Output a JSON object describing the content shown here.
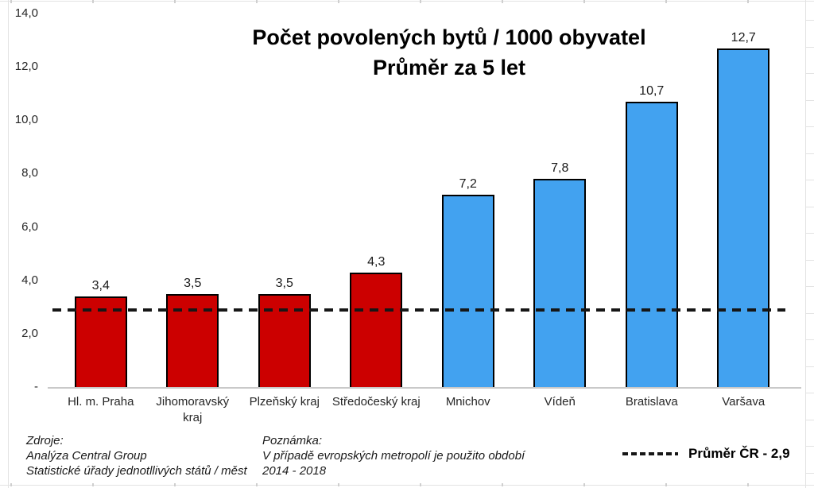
{
  "chart_data": {
    "type": "bar",
    "title_line1": "Počet povolených bytů / 1000 obyvatel",
    "title_line2": "Průměr za 5 let",
    "categories": [
      "Hl. m. Praha",
      "Jihomoravský kraj",
      "Plzeňský kraj",
      "Středočeský kraj",
      "Mnichov",
      "Vídeň",
      "Bratislava",
      "Varšava"
    ],
    "values": [
      3.4,
      3.5,
      3.5,
      4.3,
      7.2,
      7.8,
      10.7,
      12.7
    ],
    "value_labels": [
      "3,4",
      "3,5",
      "3,5",
      "4,3",
      "7,2",
      "7,8",
      "10,7",
      "12,7"
    ],
    "bar_colors": [
      "#cc0000",
      "#cc0000",
      "#cc0000",
      "#cc0000",
      "#42a2f0",
      "#42a2f0",
      "#42a2f0",
      "#42a2f0"
    ],
    "group_colors": {
      "czech_regions": "#cc0000",
      "european_cities": "#42a2f0"
    },
    "y_ticks": [
      {
        "value": 14,
        "label": "14,0"
      },
      {
        "value": 12,
        "label": "12,0"
      },
      {
        "value": 10,
        "label": "10,0"
      },
      {
        "value": 8,
        "label": "8,0"
      },
      {
        "value": 6,
        "label": "6,0"
      },
      {
        "value": 4,
        "label": "4,0"
      },
      {
        "value": 2,
        "label": "2,0"
      },
      {
        "value": 0,
        "label": "-"
      }
    ],
    "ylim": [
      0,
      14
    ],
    "grid": false,
    "reference_line": {
      "value": 2.9,
      "label": "Průměr ČR - 2,9",
      "style": "dashed",
      "color": "#161616"
    },
    "legend_position": "bottom-right"
  },
  "footer": {
    "sources": {
      "heading": "Zdroje:",
      "lines": [
        "Analýza Central Group",
        "Statistické úřady jednotllivých států / měst"
      ]
    },
    "note": {
      "heading": "Poznámka:",
      "lines": [
        "V případě evropských metropolí je použito období",
        "2014 - 2018"
      ]
    }
  }
}
